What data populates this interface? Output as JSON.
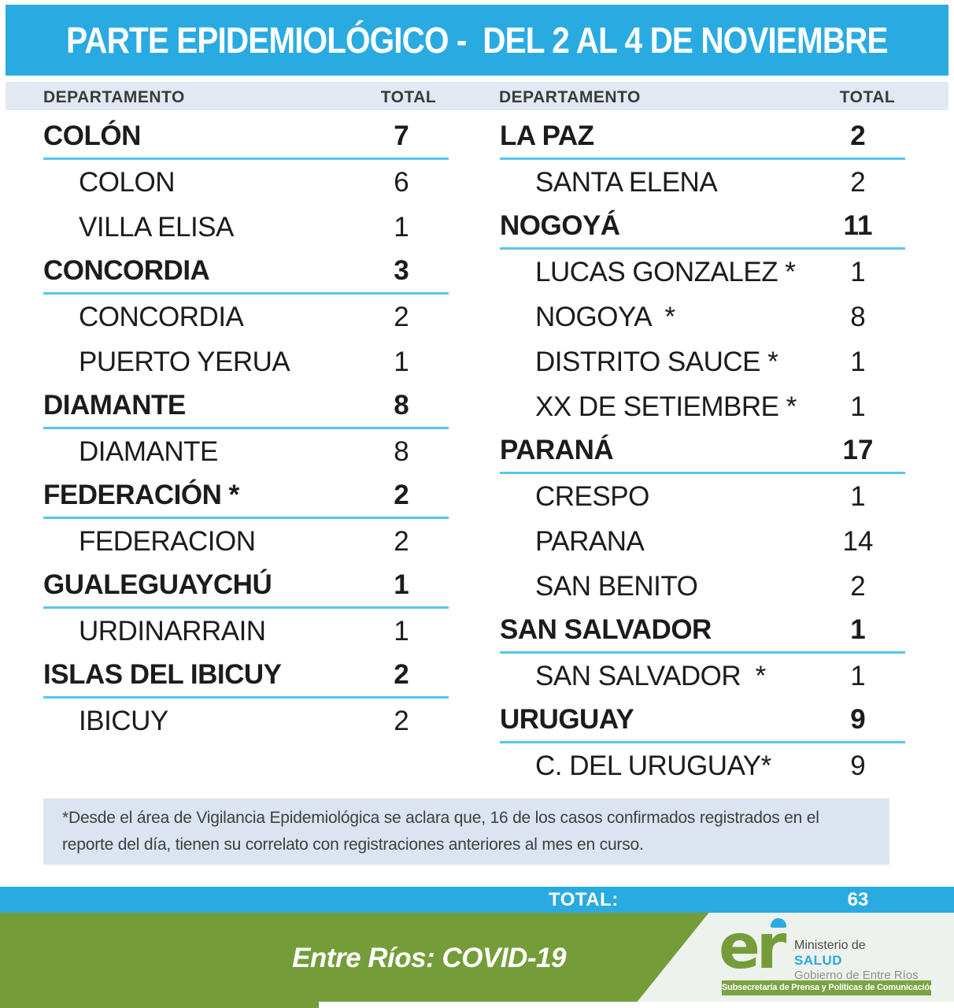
{
  "header": {
    "title": "PARTE EPIDEMIOLÓGICO -  DEL 2 AL 4 DE NOVIEMBRE"
  },
  "columns": {
    "department": "DEPARTAMENTO",
    "total": "TOTAL"
  },
  "table": {
    "left_rows": [
      {
        "label": "COLÓN",
        "total": "7",
        "type": "dept"
      },
      {
        "label": "COLON",
        "total": "6",
        "type": "loc"
      },
      {
        "label": "VILLA ELISA",
        "total": "1",
        "type": "loc"
      },
      {
        "label": "CONCORDIA",
        "total": "3",
        "type": "dept"
      },
      {
        "label": "CONCORDIA",
        "total": "2",
        "type": "loc"
      },
      {
        "label": "PUERTO YERUA",
        "total": "1",
        "type": "loc"
      },
      {
        "label": "DIAMANTE",
        "total": "8",
        "type": "dept"
      },
      {
        "label": "DIAMANTE",
        "total": "8",
        "type": "loc"
      },
      {
        "label": "FEDERACIÓN *",
        "total": "2",
        "type": "dept"
      },
      {
        "label": "FEDERACION",
        "total": "2",
        "type": "loc"
      },
      {
        "label": "GUALEGUAYCHÚ",
        "total": "1",
        "type": "dept"
      },
      {
        "label": "URDINARRAIN",
        "total": "1",
        "type": "loc"
      },
      {
        "label": "ISLAS DEL IBICUY",
        "total": "2",
        "type": "dept"
      },
      {
        "label": "IBICUY",
        "total": "2",
        "type": "loc"
      }
    ],
    "right_rows": [
      {
        "label": "LA PAZ",
        "total": "2",
        "type": "dept"
      },
      {
        "label": "SANTA ELENA",
        "total": "2",
        "type": "loc"
      },
      {
        "label": "NOGOYÁ",
        "total": "11",
        "type": "dept"
      },
      {
        "label": "LUCAS GONZALEZ *",
        "total": "1",
        "type": "loc"
      },
      {
        "label": "NOGOYA  *",
        "total": "8",
        "type": "loc"
      },
      {
        "label": "DISTRITO SAUCE *",
        "total": "1",
        "type": "loc"
      },
      {
        "label": "XX DE SETIEMBRE *",
        "total": "1",
        "type": "loc"
      },
      {
        "label": "PARANÁ",
        "total": "17",
        "type": "dept"
      },
      {
        "label": "CRESPO",
        "total": "1",
        "type": "loc"
      },
      {
        "label": "PARANA",
        "total": "14",
        "type": "loc"
      },
      {
        "label": "SAN BENITO",
        "total": "2",
        "type": "loc"
      },
      {
        "label": "SAN SALVADOR",
        "total": "1",
        "type": "dept"
      },
      {
        "label": "SAN SALVADOR  *",
        "total": "1",
        "type": "loc"
      },
      {
        "label": "URUGUAY",
        "total": "9",
        "type": "dept"
      },
      {
        "label": "C. DEL URUGUAY*",
        "total": "9",
        "type": "loc"
      }
    ]
  },
  "footnote": {
    "text": "*Desde el área de Vigilancia Epidemiológica se aclara que, 16 de los casos confirmados registrados en el reporte del día, tienen su correlato con registraciones anteriores al mes en curso."
  },
  "total_bar": {
    "label": "TOTAL:",
    "value": "63"
  },
  "footer": {
    "title": "Entre Ríos: COVID-19",
    "logo_text": "er",
    "ministry_line1": "Ministerio de",
    "ministry_line2": "SALUD",
    "ministry_line3": "Gobierno de Entre Ríos",
    "subsecretaria": "Subsecretaría de Prensa y Políticas de Comunicación"
  },
  "colors": {
    "accent_cyan": "#29abe2",
    "underline_cyan": "#55c6f0",
    "header_row_bg": "#e3e9f3",
    "footnote_bg": "#dbe4f0",
    "green": "#749d3a",
    "logo_panel_bg": "#eef2ec"
  }
}
